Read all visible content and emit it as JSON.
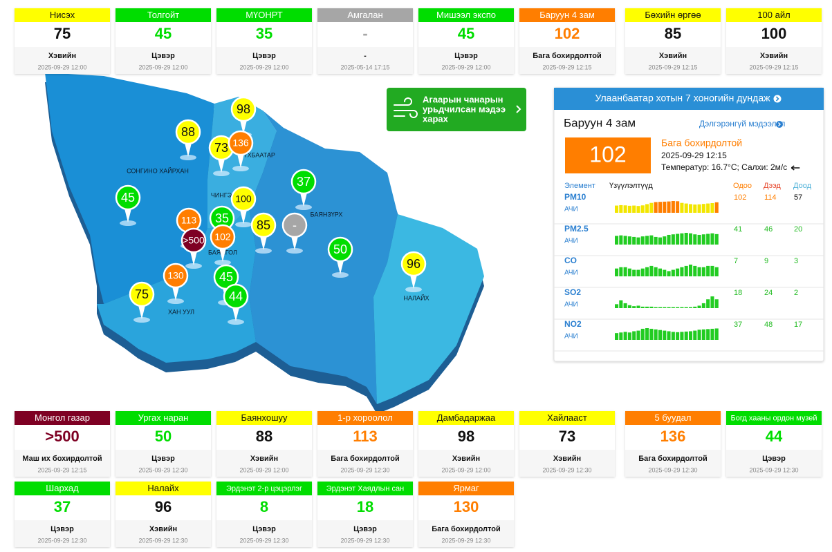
{
  "top_stations": [
    {
      "name": "Нисэх",
      "color": "#ffff00",
      "value": 75,
      "status": "Хэвийн",
      "time": "2025-09-29 12:00"
    },
    {
      "name": "Толгойт",
      "color": "#00dd00",
      "value": 45,
      "status": "Цэвэр",
      "time": "2025-09-29 12:00"
    },
    {
      "name": "МҮОНРТ",
      "color": "#00dd00",
      "value": 35,
      "status": "Цэвэр",
      "time": "2025-09-29 12:00"
    },
    {
      "name": "Амгалан",
      "color": "#a6a6a6",
      "value": "-",
      "status": "-",
      "time": "2025-05-14 17:15"
    },
    {
      "name": "Мишээл экспо",
      "color": "#00dd00",
      "value": 45,
      "status": "Цэвэр",
      "time": "2025-09-29 12:00"
    },
    {
      "name": "Баруун 4 зам",
      "color": "#ff7e00",
      "value": 102,
      "status": "Бага бохирдолтой",
      "time": "2025-09-29 12:15"
    },
    {
      "name": "Бөхийн өргөө",
      "color": "#ffff00",
      "value": 85,
      "status": "Хэвийн",
      "time": "2025-09-29 12:15"
    },
    {
      "name": "100 айл",
      "color": "#ffff00",
      "value": 100,
      "status": "Хэвийн",
      "time": "2025-09-29 12:15"
    }
  ],
  "bottom_stations": [
    {
      "name": "Монгол газар",
      "color": "#7e0023",
      "value": ">500",
      "status": "Маш их бохирдолтой",
      "time": "2025-09-29 12:15"
    },
    {
      "name": "Ургах наран",
      "color": "#00dd00",
      "value": 50,
      "status": "Цэвэр",
      "time": "2025-09-29 12:30"
    },
    {
      "name": "Баянхошуу",
      "color": "#ffff00",
      "value": 88,
      "status": "Хэвийн",
      "time": "2025-09-29 12:00"
    },
    {
      "name": "1-р хороолол",
      "color": "#ff7e00",
      "value": 113,
      "status": "Бага бохирдолтой",
      "time": "2025-09-29 12:30"
    },
    {
      "name": "Дамбадаржаа",
      "color": "#ffff00",
      "value": 98,
      "status": "Хэвийн",
      "time": "2025-09-29 12:00"
    },
    {
      "name": "Хайлааст",
      "color": "#ffff00",
      "value": 73,
      "status": "Хэвийн",
      "time": "2025-09-29 12:30"
    },
    {
      "name": "5 буудал",
      "color": "#ff7e00",
      "value": 136,
      "status": "Бага бохирдолтой",
      "time": "2025-09-29 12:30"
    },
    {
      "name": "Богд хааны ордон музей",
      "color": "#00dd00",
      "value": 44,
      "status": "Цэвэр",
      "time": "2025-09-29 12:30"
    },
    {
      "name": "Шархад",
      "color": "#00dd00",
      "value": 37,
      "status": "Цэвэр",
      "time": "2025-09-29 12:30"
    },
    {
      "name": "Налайх",
      "color": "#ffff00",
      "value": 96,
      "status": "Хэвийн",
      "time": "2025-09-29 12:30"
    },
    {
      "name": "Эрдэнэт 2-р цэцэрлэг",
      "color": "#00dd00",
      "value": 8,
      "status": "Цэвэр",
      "time": "2025-09-29 12:30"
    },
    {
      "name": "Эрдэнэт Хаядлын сан",
      "color": "#00dd00",
      "value": 18,
      "status": "Цэвэр",
      "time": "2025-09-29 12:30"
    },
    {
      "name": "Ярмаг",
      "color": "#ff7e00",
      "value": 130,
      "status": "Бага бохирдолтой",
      "time": "2025-09-29 12:30"
    }
  ],
  "map": {
    "districts": [
      "СОНГИНО ХАЙРХАН",
      "СҮХБААТАР",
      "ЧИНГЭЛТЭЙ",
      "БАЯНЗҮРХ",
      "БАЯНГОЛ",
      "ХАН УУЛ",
      "НАЛАЙХ"
    ],
    "markers": [
      {
        "label": "98",
        "color": "#ffff00"
      },
      {
        "label": "88",
        "color": "#ffff00"
      },
      {
        "label": "73",
        "color": "#ffff00"
      },
      {
        "label": "136",
        "color": "#ff7e00"
      },
      {
        "label": "37",
        "color": "#00dd00"
      },
      {
        "label": "45",
        "color": "#00dd00"
      },
      {
        "label": "100",
        "color": "#ffff00"
      },
      {
        "label": "113",
        "color": "#ff7e00"
      },
      {
        "label": "35",
        "color": "#00dd00"
      },
      {
        "label": "85",
        "color": "#ffff00"
      },
      {
        "label": "-",
        "color": "#a6a6a6"
      },
      {
        "label": ">500",
        "color": "#7e0023"
      },
      {
        "label": "102",
        "color": "#ff7e00"
      },
      {
        "label": "50",
        "color": "#00dd00"
      },
      {
        "label": "96",
        "color": "#ffff00"
      },
      {
        "label": "130",
        "color": "#ff7e00"
      },
      {
        "label": "45",
        "color": "#00dd00"
      },
      {
        "label": "75",
        "color": "#ffff00"
      },
      {
        "label": "44",
        "color": "#00dd00"
      }
    ]
  },
  "forecast_button": {
    "lines": [
      "Агаарын чанарын",
      "урьдчилсан мэдээ",
      "харах"
    ]
  },
  "panel": {
    "header": "Улаанбаатар хотын 7 хоногийн дундаж",
    "station": "Баруун 4 зам",
    "link": "Дэлгэрэнгүй мэдээлэл",
    "value": 102,
    "color": "#ff7e00",
    "status": "Бага бохирдолтой",
    "time": "2025-09-29 12:15",
    "weather": "Температур: 16.7°C; Салхи: 2м/с",
    "columns": [
      "Элемент",
      "Үзүүлэлтүүд",
      "Одоо",
      "Дээд",
      "Доод"
    ],
    "rows": [
      {
        "name": "PM10",
        "unit": "АЧИ",
        "current": 102,
        "max": 114,
        "min": 57,
        "value_colors": [
          "#ff7e00",
          "#ff7e00",
          "#111111"
        ],
        "color": "#ffff00",
        "bars": [
          70,
          74,
          72,
          68,
          70,
          66,
          72,
          84,
          96,
          104,
          106,
          108,
          110,
          114,
          112,
          96,
          90,
          84,
          80,
          82,
          86,
          90,
          94,
          102
        ],
        "bar_colors": [
          "#f2e600",
          "#f2e600",
          "#f2e600",
          "#f2e600",
          "#f2e600",
          "#f2e600",
          "#f2e600",
          "#f2e600",
          "#f2e600",
          "#ff7e00",
          "#ff7e00",
          "#ff7e00",
          "#ff7e00",
          "#ff7e00",
          "#ff7e00",
          "#f2e600",
          "#f2e600",
          "#f2e600",
          "#f2e600",
          "#f2e600",
          "#f2e600",
          "#f2e600",
          "#f2e600",
          "#ff7e00"
        ]
      },
      {
        "name": "PM2.5",
        "unit": "АЧИ",
        "current": 41,
        "max": 46,
        "min": 20,
        "value_colors": [
          "#22bb22",
          "#22bb22",
          "#22bb22"
        ],
        "color": "#22cc22",
        "bars": [
          34,
          36,
          34,
          32,
          30,
          28,
          32,
          34,
          36,
          30,
          28,
          32,
          38,
          40,
          42,
          44,
          46,
          44,
          40,
          38,
          40,
          42,
          44,
          41
        ]
      },
      {
        "name": "CO",
        "unit": "АЧИ",
        "current": 7,
        "max": 9,
        "min": 3,
        "value_colors": [
          "#22bb22",
          "#22bb22",
          "#22bb22"
        ],
        "color": "#22cc22",
        "bars": [
          6,
          7,
          7,
          6,
          5,
          5,
          6,
          7,
          8,
          7,
          6,
          5,
          4,
          5,
          6,
          7,
          8,
          9,
          8,
          7,
          7,
          8,
          8,
          7
        ]
      },
      {
        "name": "SO2",
        "unit": "АЧИ",
        "current": 18,
        "max": 24,
        "min": 2,
        "value_colors": [
          "#22bb22",
          "#22bb22",
          "#22bb22"
        ],
        "color": "#22cc22",
        "bars": [
          8,
          16,
          10,
          6,
          4,
          5,
          3,
          3,
          3,
          2,
          2,
          2,
          2,
          2,
          2,
          2,
          2,
          2,
          3,
          5,
          10,
          18,
          24,
          18
        ]
      },
      {
        "name": "NO2",
        "unit": "АЧИ",
        "current": 37,
        "max": 48,
        "min": 17,
        "value_colors": [
          "#22bb22",
          "#22bb22",
          "#22bb22"
        ],
        "color": "#22cc22",
        "bars": [
          22,
          24,
          26,
          24,
          28,
          30,
          36,
          38,
          36,
          34,
          32,
          30,
          28,
          26,
          25,
          26,
          27,
          28,
          30,
          33,
          34,
          35,
          36,
          37
        ]
      }
    ]
  }
}
